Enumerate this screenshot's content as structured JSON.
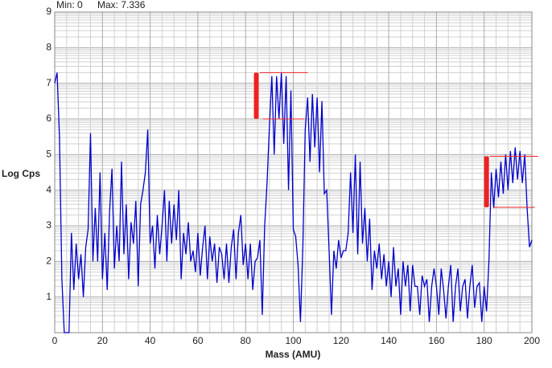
{
  "chart_data": {
    "type": "line",
    "min_label": "Min: 0",
    "max_label": "Max: 7.336",
    "y_label": "Log Cps",
    "x_label": "Mass (AMU)",
    "xlim": [
      0,
      200
    ],
    "xticks": [
      0,
      20,
      40,
      60,
      80,
      100,
      120,
      140,
      160,
      180,
      200
    ],
    "ylim": [
      0,
      9
    ],
    "yticks": [
      1,
      2,
      3,
      4,
      5,
      6,
      7,
      8,
      9
    ],
    "grid": true,
    "series": [
      {
        "color": "#0000cc",
        "x": [
          0,
          1,
          2,
          3,
          4,
          5,
          6,
          7,
          8,
          9,
          10,
          11,
          12,
          13,
          14,
          15,
          16,
          17,
          18,
          19,
          20,
          21,
          22,
          23,
          24,
          25,
          26,
          27,
          28,
          29,
          30,
          31,
          32,
          33,
          34,
          35,
          36,
          37,
          38,
          39,
          40,
          41,
          42,
          43,
          44,
          45,
          46,
          47,
          48,
          49,
          50,
          51,
          52,
          53,
          54,
          55,
          56,
          57,
          58,
          59,
          60,
          61,
          62,
          63,
          64,
          65,
          66,
          67,
          68,
          69,
          70,
          71,
          72,
          73,
          74,
          75,
          76,
          77,
          78,
          79,
          80,
          81,
          82,
          83,
          84,
          85,
          86,
          87,
          88,
          89,
          90,
          91,
          92,
          93,
          94,
          95,
          96,
          97,
          98,
          99,
          100,
          101,
          102,
          103,
          104,
          105,
          106,
          107,
          108,
          109,
          110,
          111,
          112,
          113,
          114,
          115,
          116,
          117,
          118,
          119,
          120,
          121,
          122,
          123,
          124,
          125,
          126,
          127,
          128,
          129,
          130,
          131,
          132,
          133,
          134,
          135,
          136,
          137,
          138,
          139,
          140,
          141,
          142,
          143,
          144,
          145,
          146,
          147,
          148,
          149,
          150,
          151,
          152,
          153,
          154,
          155,
          156,
          157,
          158,
          159,
          160,
          161,
          162,
          163,
          164,
          165,
          166,
          167,
          168,
          169,
          170,
          171,
          172,
          173,
          174,
          175,
          176,
          177,
          178,
          179,
          180,
          181,
          182,
          183,
          184,
          185,
          186,
          187,
          188,
          189,
          190,
          191,
          192,
          193,
          194,
          195,
          196,
          197,
          198,
          199,
          200
        ],
        "values": [
          7.0,
          7.3,
          5.5,
          1.5,
          0,
          0,
          0,
          2.8,
          1.2,
          2.5,
          1.5,
          2.2,
          1.0,
          2.4,
          2.9,
          5.6,
          2.0,
          3.5,
          2.0,
          4.5,
          1.5,
          2.8,
          1.2,
          3.4,
          4.6,
          1.8,
          3.0,
          2.0,
          4.8,
          2.2,
          3.6,
          1.5,
          3.1,
          2.5,
          3.7,
          1.3,
          3.6,
          4.0,
          4.5,
          5.7,
          2.5,
          3.0,
          1.8,
          3.3,
          2.2,
          3.0,
          4.0,
          2.0,
          3.7,
          2.5,
          3.6,
          2.6,
          4.0,
          1.5,
          2.8,
          2.2,
          3.1,
          2.0,
          2.3,
          1.7,
          2.8,
          1.6,
          2.4,
          3.0,
          1.5,
          2.7,
          2.0,
          2.5,
          1.4,
          2.4,
          2.2,
          1.5,
          2.5,
          1.4,
          2.4,
          2.9,
          1.5,
          2.8,
          3.3,
          1.9,
          2.5,
          1.5,
          2.5,
          1.2,
          2.0,
          2.1,
          2.6,
          0.5,
          3.0,
          4.2,
          5.8,
          7.2,
          5.0,
          7.2,
          6.0,
          7.3,
          5.3,
          7.2,
          4.0,
          6.8,
          2.9,
          2.7,
          1.9,
          0.3,
          2.4,
          5.7,
          6.6,
          4.8,
          6.7,
          5.2,
          6.6,
          4.5,
          6.5,
          3.9,
          4.0,
          2.3,
          0.5,
          2.3,
          1.8,
          2.6,
          2.1,
          2.3,
          2.3,
          2.8,
          4.5,
          2.8,
          5.0,
          2.2,
          4.8,
          2.5,
          3.5,
          2.0,
          3.2,
          1.2,
          2.3,
          1.8,
          2.5,
          1.5,
          2.2,
          1.3,
          2.0,
          1.0,
          2.4,
          1.3,
          1.8,
          0.5,
          2.0,
          1.3,
          1.9,
          0.6,
          1.9,
          1.3,
          1.3,
          0.5,
          1.6,
          1.3,
          1.5,
          0.3,
          1.3,
          1.8,
          1.3,
          0.5,
          1.8,
          1.2,
          0.4,
          1.3,
          1.9,
          0.3,
          1.3,
          1.8,
          0.6,
          1.3,
          1.5,
          0.4,
          1.3,
          1.9,
          0.7,
          1.3,
          1.4,
          0.3,
          1.3,
          0.6,
          2.0,
          4.5,
          3.5,
          4.6,
          3.8,
          4.8,
          3.9,
          5.0,
          4.0,
          5.1,
          4.2,
          5.2,
          4.3,
          5.1,
          4.2,
          5.0,
          3.5,
          2.4,
          2.6
        ]
      }
    ],
    "markers": [
      {
        "color": "#ee2222",
        "x": 84.5,
        "high": 7.3,
        "low": 6.0
      },
      {
        "color": "#ee2222",
        "x": 181,
        "high": 4.95,
        "low": 3.52
      }
    ]
  }
}
